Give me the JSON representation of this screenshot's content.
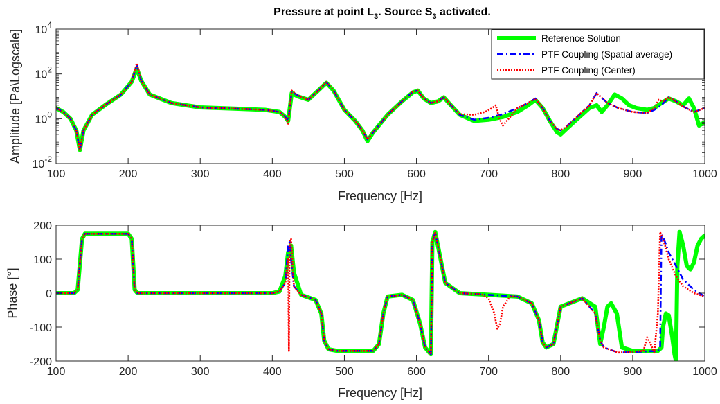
{
  "figure": {
    "title_main": "Pressure at point L",
    "title_sub1": "3",
    "title_mid": ". Source S",
    "title_sub2": "3",
    "title_end": " activated."
  },
  "legend": {
    "entries": [
      {
        "label": "Reference Solution",
        "color": "#00ff00",
        "style": "solid"
      },
      {
        "label": "PTF Coupling (Spatial average)",
        "color": "#0000ff",
        "style": "dashdot"
      },
      {
        "label": "PTF Coupling (Center)",
        "color": "#ff0000",
        "style": "dotted"
      }
    ]
  },
  "chart_data": [
    {
      "type": "line",
      "xlabel": "Frequency [Hz]",
      "ylabel": "Amplitude [Pa\\Logscale]",
      "xlim": [
        100,
        1000
      ],
      "ylim": [
        0.01,
        10000
      ],
      "yscale": "log",
      "grid": false,
      "legend_position": "top-right",
      "xticks": [
        "100",
        "200",
        "300",
        "400",
        "500",
        "600",
        "700",
        "800",
        "900",
        "1000"
      ],
      "yticks": [
        {
          "base": "10",
          "exp": "-2"
        },
        {
          "base": "10",
          "exp": "0"
        },
        {
          "base": "10",
          "exp": "2"
        },
        {
          "base": "10",
          "exp": "4"
        }
      ],
      "series": [
        {
          "name": "Reference Solution",
          "x": [
            100,
            110,
            120,
            128,
            133,
            138,
            150,
            170,
            190,
            205,
            212,
            218,
            230,
            260,
            300,
            350,
            390,
            410,
            418,
            422,
            427,
            435,
            450,
            465,
            475,
            485,
            500,
            515,
            525,
            532,
            540,
            560,
            580,
            595,
            602,
            610,
            620,
            630,
            638,
            645,
            660,
            680,
            700,
            720,
            740,
            755,
            765,
            775,
            785,
            795,
            800,
            808,
            820,
            840,
            850,
            857,
            865,
            875,
            885,
            895,
            905,
            920,
            930,
            940,
            950,
            960,
            970,
            978,
            985,
            992,
            1000
          ],
          "y": [
            3,
            2,
            1,
            0.3,
            0.04,
            0.3,
            1.5,
            4.5,
            12,
            45,
            180,
            50,
            12,
            5,
            3.2,
            2.8,
            2.5,
            2,
            1.2,
            0.8,
            14,
            10,
            7,
            20,
            40,
            18,
            2.5,
            0.8,
            0.3,
            0.1,
            0.25,
            1.5,
            6,
            15,
            18,
            8,
            5,
            6,
            9,
            5,
            1.5,
            0.8,
            0.9,
            1.2,
            2,
            4,
            7,
            3,
            0.8,
            0.25,
            0.2,
            0.35,
            0.8,
            3,
            4,
            2,
            4,
            12,
            8,
            4,
            3,
            2.5,
            3,
            5,
            8,
            6,
            4,
            8,
            3,
            0.5,
            0.7
          ]
        },
        {
          "name": "PTF Coupling (Spatial average)",
          "x": [
            100,
            110,
            120,
            128,
            133,
            138,
            150,
            170,
            190,
            205,
            212,
            218,
            230,
            260,
            300,
            350,
            390,
            410,
            418,
            422,
            427,
            435,
            450,
            465,
            475,
            485,
            500,
            515,
            525,
            532,
            540,
            560,
            580,
            595,
            602,
            610,
            620,
            630,
            638,
            645,
            660,
            680,
            700,
            720,
            740,
            755,
            765,
            775,
            785,
            795,
            800,
            808,
            820,
            840,
            850,
            855,
            865,
            880,
            900,
            920,
            930,
            940,
            950,
            960,
            970,
            985,
            1000
          ],
          "y": [
            3,
            2,
            1,
            0.3,
            0.04,
            0.3,
            1.5,
            4.5,
            12,
            45,
            260,
            50,
            12,
            5,
            3.2,
            2.8,
            2.5,
            2,
            1.2,
            0.8,
            16,
            11,
            7,
            20,
            42,
            18,
            2.5,
            0.8,
            0.3,
            0.12,
            0.25,
            1.5,
            6,
            16,
            18,
            8,
            5,
            6,
            9,
            5,
            1.5,
            0.9,
            1.1,
            1.6,
            3,
            5,
            8,
            3,
            0.8,
            0.35,
            0.3,
            0.45,
            1,
            4,
            14,
            10,
            5,
            3,
            2,
            1.8,
            2.5,
            4,
            9,
            6,
            3.5,
            2,
            3
          ]
        },
        {
          "name": "PTF Coupling (Center)",
          "x": [
            100,
            110,
            120,
            128,
            133,
            138,
            150,
            170,
            190,
            205,
            212,
            218,
            230,
            260,
            300,
            350,
            390,
            410,
            418,
            422,
            427,
            435,
            450,
            465,
            475,
            485,
            500,
            515,
            525,
            532,
            540,
            560,
            580,
            595,
            602,
            610,
            620,
            630,
            638,
            645,
            660,
            680,
            695,
            705,
            710,
            715,
            720,
            730,
            740,
            755,
            765,
            775,
            785,
            795,
            800,
            808,
            820,
            840,
            850,
            855,
            865,
            880,
            900,
            920,
            930,
            936,
            942,
            950,
            960,
            970,
            985,
            1000
          ],
          "y": [
            3,
            2,
            1,
            0.3,
            0.04,
            0.3,
            1.5,
            4.5,
            12,
            45,
            300,
            50,
            12,
            5,
            3.2,
            2.8,
            2.5,
            2,
            1.2,
            0.6,
            18,
            11,
            7,
            20,
            42,
            18,
            2.5,
            0.8,
            0.3,
            0.12,
            0.25,
            1.5,
            6,
            16,
            18,
            8,
            5,
            6,
            9,
            5,
            1.6,
            1.5,
            2,
            3,
            4,
            1,
            0.5,
            1.2,
            3,
            5,
            8,
            3,
            0.8,
            0.35,
            0.3,
            0.45,
            1,
            4,
            14,
            10,
            5,
            3,
            2,
            1.8,
            3,
            7,
            6,
            9,
            6,
            3.5,
            2,
            3
          ]
        }
      ]
    },
    {
      "type": "line",
      "xlabel": "Frequency [Hz]",
      "ylabel": "Phase [°]",
      "xlim": [
        100,
        1000
      ],
      "ylim": [
        -200,
        200
      ],
      "yscale": "linear",
      "grid": false,
      "xticks": [
        "100",
        "200",
        "300",
        "400",
        "500",
        "600",
        "700",
        "800",
        "900",
        "1000"
      ],
      "yticks": [
        "-200",
        "-100",
        "0",
        "100",
        "200"
      ],
      "series": [
        {
          "name": "Reference Solution",
          "x": [
            100,
            125,
            130,
            136,
            140,
            200,
            205,
            209,
            213,
            400,
            410,
            418,
            422,
            426,
            430,
            440,
            460,
            468,
            472,
            478,
            490,
            540,
            548,
            554,
            560,
            580,
            595,
            605,
            612,
            618,
            620,
            622,
            626,
            640,
            660,
            700,
            740,
            760,
            770,
            775,
            780,
            790,
            800,
            830,
            848,
            855,
            860,
            865,
            870,
            878,
            885,
            900,
            935,
            940,
            942,
            946,
            950,
            955,
            958,
            960,
            962,
            965,
            970,
            975,
            980,
            985,
            990,
            995,
            1000
          ],
          "y": [
            0,
            0,
            10,
            160,
            175,
            175,
            160,
            10,
            0,
            0,
            5,
            50,
            120,
            140,
            60,
            -5,
            -20,
            -60,
            -140,
            -165,
            -170,
            -170,
            -150,
            -60,
            -10,
            -5,
            -20,
            -90,
            -160,
            -175,
            -180,
            150,
            180,
            30,
            0,
            -5,
            -10,
            -30,
            -80,
            -145,
            -160,
            -150,
            -40,
            -15,
            -40,
            -150,
            -100,
            -40,
            -30,
            -60,
            -160,
            -170,
            -170,
            -160,
            -100,
            -60,
            -65,
            -130,
            -180,
            -200,
            80,
            180,
            140,
            80,
            70,
            90,
            140,
            160,
            170
          ]
        },
        {
          "name": "PTF Coupling (Spatial average)",
          "x": [
            100,
            125,
            130,
            136,
            140,
            200,
            205,
            209,
            213,
            400,
            410,
            418,
            422,
            424,
            426,
            430,
            440,
            460,
            468,
            472,
            478,
            490,
            540,
            548,
            554,
            560,
            580,
            595,
            605,
            612,
            618,
            620,
            622,
            626,
            640,
            660,
            700,
            740,
            760,
            770,
            775,
            780,
            790,
            800,
            830,
            848,
            855,
            860,
            880,
            935,
            938,
            940,
            942,
            945,
            950,
            960,
            970,
            985,
            1000
          ],
          "y": [
            0,
            0,
            10,
            160,
            175,
            175,
            160,
            10,
            0,
            0,
            5,
            30,
            140,
            150,
            100,
            20,
            -5,
            -20,
            -60,
            -140,
            -165,
            -170,
            -170,
            -150,
            -60,
            -10,
            -5,
            -20,
            -90,
            -160,
            -175,
            -180,
            150,
            180,
            30,
            0,
            -5,
            -10,
            -30,
            -80,
            -145,
            -160,
            -150,
            -40,
            -15,
            -60,
            -140,
            -160,
            -175,
            -170,
            -160,
            175,
            165,
            150,
            120,
            80,
            40,
            10,
            -10
          ]
        },
        {
          "name": "PTF Coupling (Center)",
          "x": [
            100,
            125,
            130,
            136,
            140,
            200,
            205,
            209,
            213,
            400,
            410,
            418,
            422,
            423,
            424,
            426,
            430,
            440,
            460,
            468,
            472,
            478,
            490,
            540,
            548,
            554,
            560,
            580,
            595,
            605,
            612,
            618,
            620,
            622,
            626,
            640,
            660,
            690,
            700,
            708,
            712,
            716,
            720,
            730,
            740,
            760,
            770,
            775,
            780,
            790,
            800,
            830,
            848,
            855,
            860,
            880,
            915,
            920,
            925,
            930,
            935,
            938,
            940,
            945,
            950,
            960,
            970,
            985,
            1000
          ],
          "y": [
            0,
            0,
            10,
            160,
            175,
            175,
            160,
            10,
            0,
            0,
            5,
            30,
            100,
            -170,
            150,
            160,
            20,
            -5,
            -20,
            -60,
            -140,
            -165,
            -170,
            -170,
            -150,
            -60,
            -10,
            -5,
            -20,
            -90,
            -160,
            -175,
            -180,
            150,
            180,
            30,
            0,
            -3,
            -15,
            -60,
            -105,
            -90,
            -40,
            -10,
            -10,
            -30,
            -80,
            -145,
            -160,
            -150,
            -40,
            -15,
            -60,
            -140,
            -160,
            -175,
            -170,
            -130,
            -150,
            -175,
            -60,
            180,
            170,
            140,
            100,
            50,
            20,
            0,
            -10
          ]
        }
      ]
    }
  ]
}
